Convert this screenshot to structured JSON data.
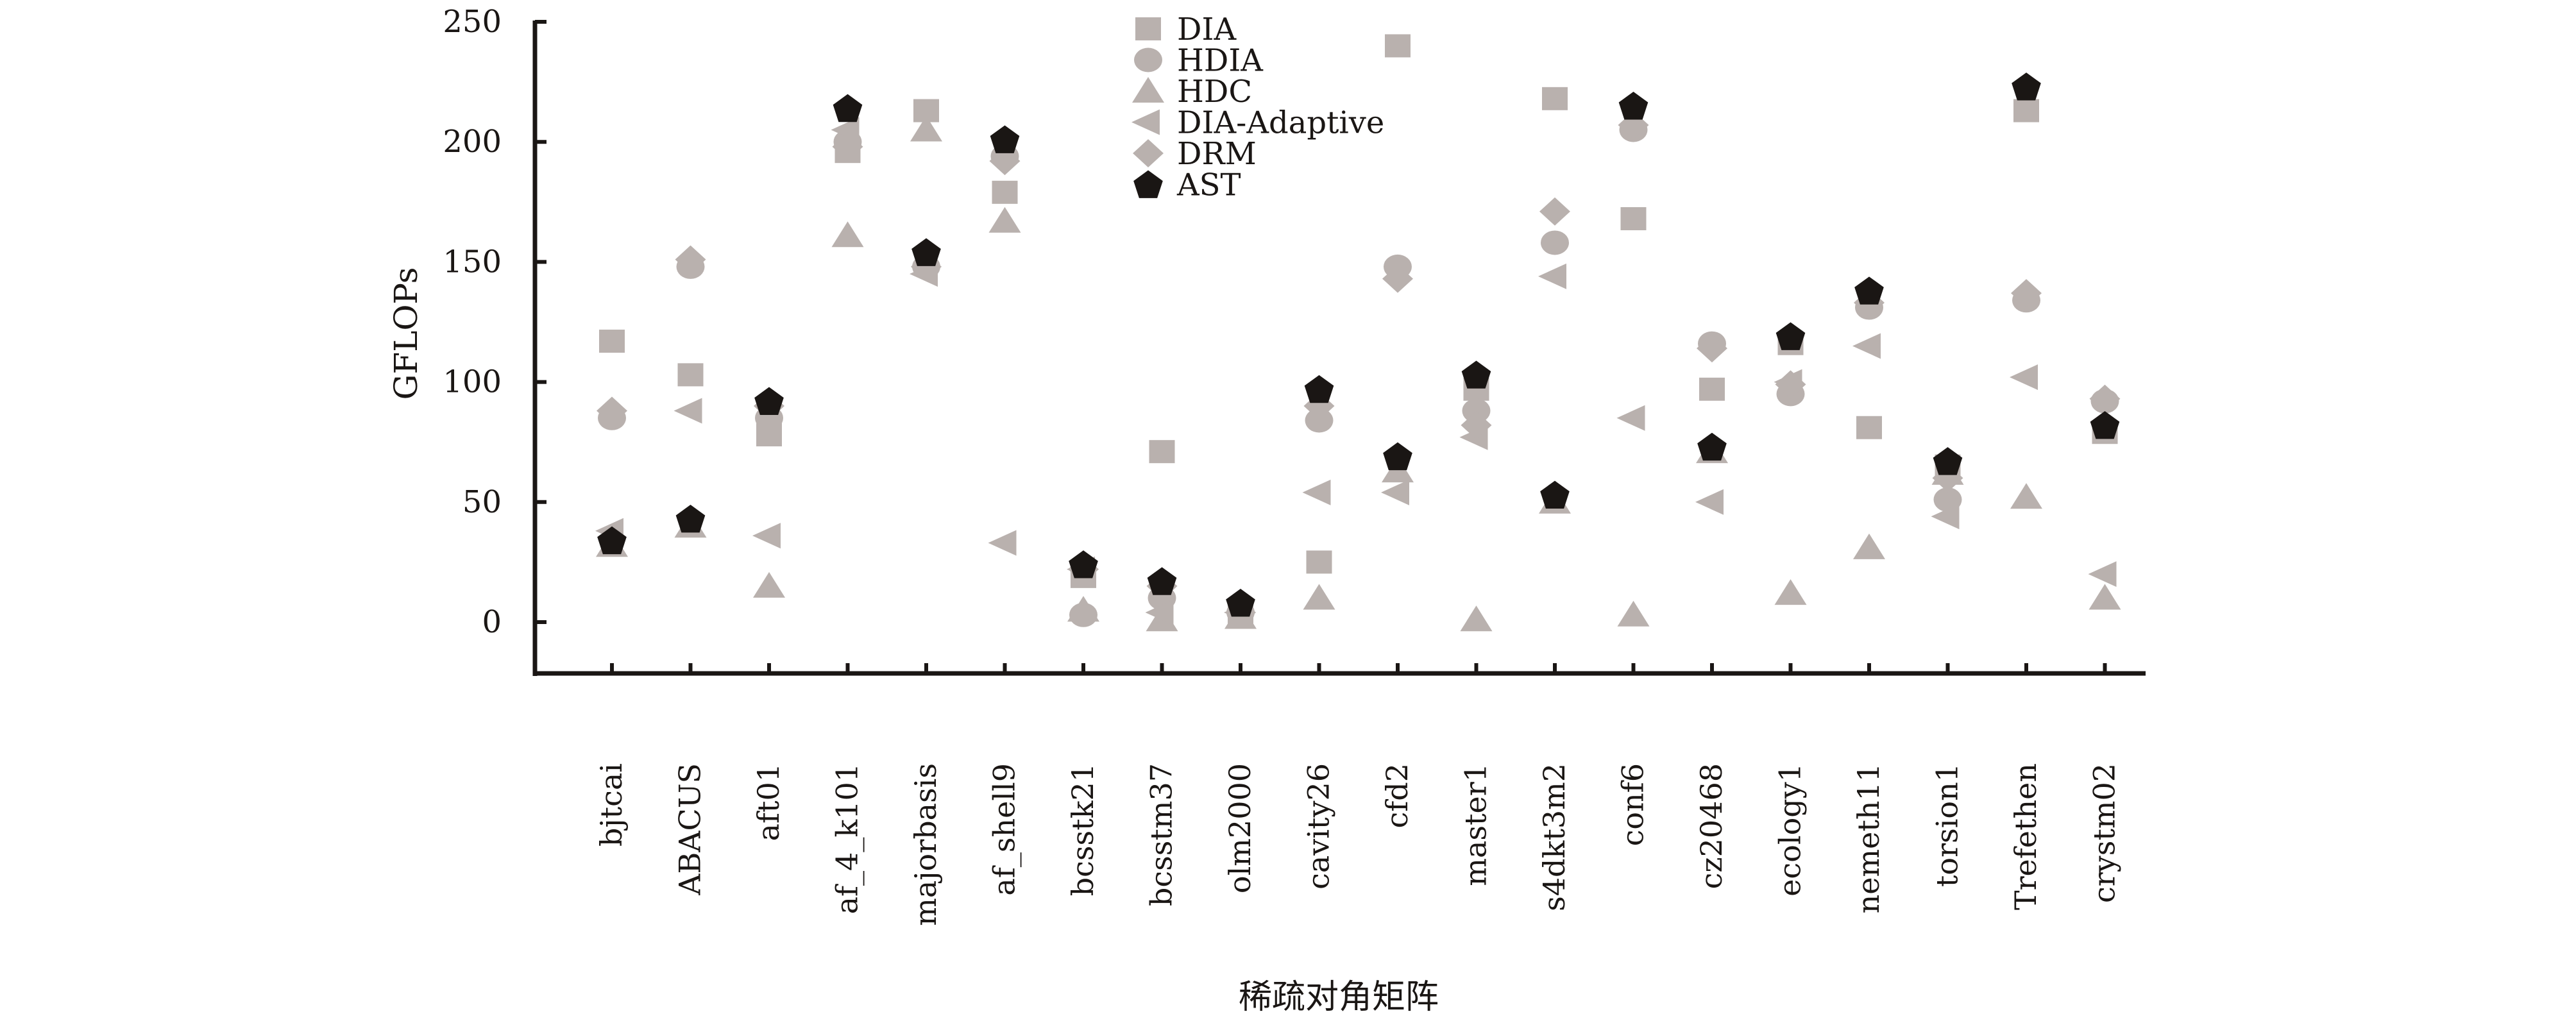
{
  "chart_data": {
    "type": "scatter",
    "title": "",
    "xlabel": "稀疏对角矩阵",
    "ylabel": "GFLOPs",
    "ylim": [
      -22,
      250
    ],
    "yticks": [
      "0",
      "50",
      "100",
      "150",
      "200",
      "250"
    ],
    "legend_position": "top-center",
    "categories": [
      "bjtcai",
      "ABACUS",
      "aft01",
      "af_4_k101",
      "majorbasis",
      "af_shell9",
      "bcsstk21",
      "bcsstm37",
      "olm2000",
      "cavity26",
      "cfd2",
      "master1",
      "s4dkt3m2",
      "conf6",
      "cz20468",
      "ecology1",
      "nemeth11",
      "torsion1",
      "Trefethen",
      "crystm02"
    ],
    "series": [
      {
        "name": "DIA",
        "marker": "square",
        "color": "#b9b1ae",
        "values": [
          117,
          103,
          78,
          196,
          213,
          179,
          19,
          71,
          4,
          25,
          240,
          97,
          218,
          168,
          97,
          116,
          81,
          65,
          213,
          79
        ]
      },
      {
        "name": "HDIA",
        "marker": "circle",
        "color": "#b9b1ae",
        "values": [
          85,
          148,
          85,
          200,
          148,
          194,
          3,
          10,
          4,
          84,
          148,
          88,
          158,
          205,
          116,
          95,
          131,
          51,
          134,
          92
        ]
      },
      {
        "name": "HDC",
        "marker": "triangle-up",
        "color": "#b9b1ae",
        "values": [
          32,
          40,
          15,
          161,
          205,
          167,
          5,
          1,
          2,
          10,
          63,
          1,
          50,
          3,
          71,
          12,
          31,
          62,
          52,
          10
        ]
      },
      {
        "name": "DIA-Adaptive",
        "marker": "triangle-left",
        "color": "#b9b1ae",
        "values": [
          38,
          88,
          36,
          205,
          145,
          33,
          22,
          4,
          4,
          54,
          54,
          77,
          144,
          85,
          50,
          100,
          115,
          44,
          102,
          20
        ]
      },
      {
        "name": "DRM",
        "marker": "diamond",
        "color": "#b9b1ae",
        "values": [
          88,
          151,
          90,
          198,
          148,
          192,
          22,
          15,
          4,
          90,
          143,
          82,
          171,
          207,
          114,
          99,
          133,
          60,
          137,
          93
        ]
      },
      {
        "name": "AST",
        "marker": "pentagon",
        "color": "#1a1614",
        "values": [
          34,
          43,
          92,
          214,
          154,
          201,
          24,
          17,
          8,
          97,
          69,
          103,
          53,
          215,
          73,
          119,
          138,
          67,
          223,
          82
        ]
      }
    ]
  }
}
